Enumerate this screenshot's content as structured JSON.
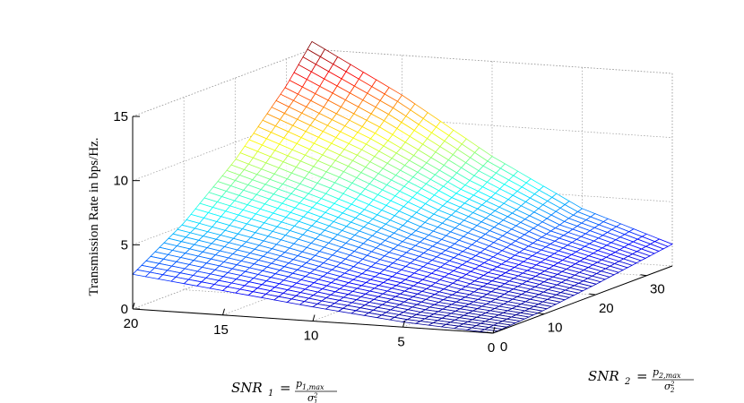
{
  "chart_data": {
    "type": "surface",
    "zlabel": "Transmission Rate in bps/Hz.",
    "xlabel": {
      "base": "SNR",
      "sub": "1",
      "eq": "=",
      "num": "p",
      "num_sub": "1,max",
      "den": "σ",
      "den_sub": "1",
      "den_sup": "2"
    },
    "ylabel": {
      "base": "SNR",
      "sub": "2",
      "eq": "=",
      "num": "p",
      "num_sub": "2,max",
      "den": "σ",
      "den_sub": "2",
      "den_sup": "2"
    },
    "x_ticks": [
      "20",
      "15",
      "10",
      "5",
      "0"
    ],
    "y_ticks": [
      "0",
      "10",
      "20",
      "30"
    ],
    "z_ticks": [
      "0",
      "5",
      "10",
      "15"
    ],
    "xlim": [
      0,
      20
    ],
    "ylim": [
      0,
      35
    ],
    "zlim": [
      0,
      15
    ],
    "grid": true,
    "colormap": "jet",
    "mesh": {
      "nx": 28,
      "ny": 40
    },
    "surface_samples": {
      "x": [
        0,
        5,
        10,
        15,
        20
      ],
      "y": [
        0,
        10,
        20,
        30,
        35
      ],
      "z": [
        [
          0.0,
          0.3,
          0.8,
          1.4,
          1.7
        ],
        [
          0.4,
          1.1,
          2.1,
          3.3,
          4.0
        ],
        [
          1.1,
          2.3,
          4.0,
          6.2,
          7.6
        ],
        [
          1.9,
          3.8,
          6.4,
          9.8,
          11.9
        ],
        [
          2.7,
          5.2,
          8.6,
          12.9,
          15.6
        ]
      ]
    }
  }
}
